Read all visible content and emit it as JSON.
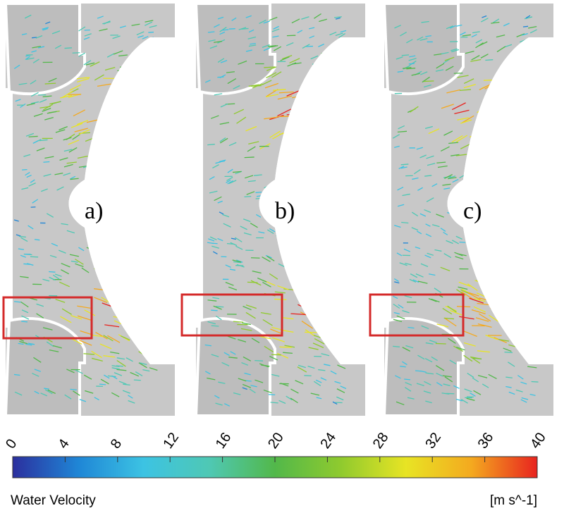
{
  "panels": [
    {
      "label": "a)"
    },
    {
      "label": "b)"
    },
    {
      "label": "c)"
    }
  ],
  "colorbar": {
    "title": "Water Velocity",
    "unit": "[m s^-1]",
    "range": [
      0,
      40
    ],
    "ticks": [
      0,
      4,
      8,
      12,
      16,
      20,
      24,
      28,
      32,
      36,
      40
    ],
    "colors": [
      "#2b2f9e",
      "#1f86d6",
      "#3cc3e3",
      "#4fc8b4",
      "#52b84a",
      "#8fca2e",
      "#e8e424",
      "#f4a91f",
      "#e8231f"
    ]
  }
}
